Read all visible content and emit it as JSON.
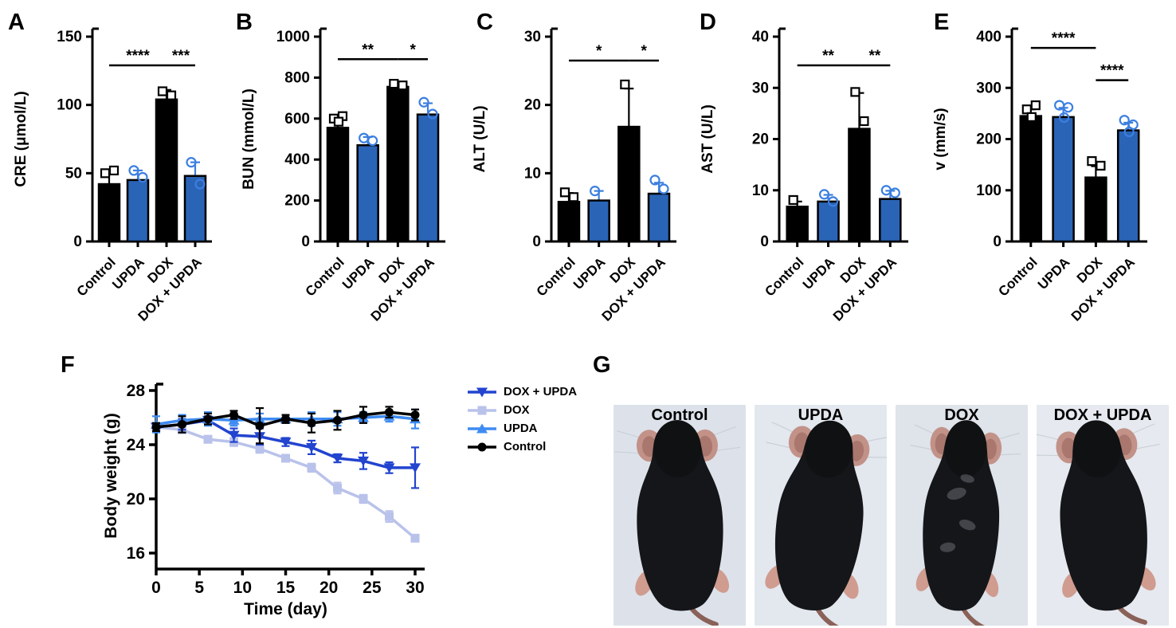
{
  "figure": {
    "panel_letters": [
      "A",
      "B",
      "C",
      "D",
      "E",
      "F",
      "G"
    ]
  },
  "colors": {
    "black": "#000000",
    "bar_blue": "#2a64b6",
    "point_blue": "#3c7fe0",
    "line_dox_upda": "#2244cf",
    "line_dox": "#b9c2ea",
    "line_upda": "#3e8bf2",
    "photo_bg": "#e0e5ec"
  },
  "chart_data": [
    {
      "panel": "A",
      "type": "bar",
      "ylabel": "CRE (μmol/L)",
      "ylim": [
        0,
        150
      ],
      "yticks": [
        0,
        50,
        100,
        150
      ],
      "categories": [
        "Control",
        "UPDA",
        "DOX",
        "DOX + UPDA"
      ],
      "values": [
        42,
        45,
        104,
        48
      ],
      "errors": [
        9,
        7,
        7,
        10
      ],
      "bar_colors": [
        "black",
        "blue",
        "black",
        "blue"
      ],
      "points": [
        [
          50,
          52
        ],
        [
          52,
          47
        ],
        [
          110,
          107
        ],
        [
          58,
          42
        ]
      ],
      "significance": [
        {
          "from": 0,
          "to": 2,
          "label": "****",
          "line_y": 129
        },
        {
          "from": 2,
          "to": 3,
          "label": "***",
          "line_y": 129
        }
      ]
    },
    {
      "panel": "B",
      "type": "bar",
      "ylabel": "BUN (mmol/L)",
      "ylim": [
        0,
        1000
      ],
      "yticks": [
        0,
        200,
        400,
        600,
        800,
        1000
      ],
      "categories": [
        "Control",
        "UPDA",
        "DOX",
        "DOX + UPDA"
      ],
      "values": [
        555,
        470,
        755,
        620
      ],
      "errors": [
        60,
        40,
        18,
        55
      ],
      "bar_colors": [
        "black",
        "blue",
        "black",
        "blue"
      ],
      "points": [
        [
          600,
          612,
          585
        ],
        [
          505,
          492
        ],
        [
          770,
          762
        ],
        [
          680,
          622
        ]
      ],
      "significance": [
        {
          "from": 0,
          "to": 2,
          "label": "**",
          "line_y": 890
        },
        {
          "from": 2,
          "to": 3,
          "label": "*",
          "line_y": 890
        }
      ]
    },
    {
      "panel": "C",
      "type": "bar",
      "ylabel": "ALT (U/L)",
      "ylim": [
        0,
        30
      ],
      "yticks": [
        0,
        10,
        20,
        30
      ],
      "categories": [
        "Control",
        "UPDA",
        "DOX",
        "DOX + UPDA"
      ],
      "values": [
        5.8,
        6,
        16.8,
        7
      ],
      "errors": [
        1.3,
        1.4,
        5.6,
        1.6
      ],
      "bar_colors": [
        "black",
        "blue",
        "black",
        "blue"
      ],
      "points": [
        [
          7.2,
          6.5
        ],
        [
          7.4
        ],
        [
          23
        ],
        [
          9,
          7.7
        ]
      ],
      "significance": [
        {
          "from": 0,
          "to": 2,
          "label": "*",
          "line_y": 26.5
        },
        {
          "from": 2,
          "to": 3,
          "label": "*",
          "line_y": 26.5
        }
      ]
    },
    {
      "panel": "D",
      "type": "bar",
      "ylabel": "AST (U/L)",
      "ylim": [
        0,
        40
      ],
      "yticks": [
        0,
        10,
        20,
        30,
        40
      ],
      "categories": [
        "Control",
        "UPDA",
        "DOX",
        "DOX + UPDA"
      ],
      "values": [
        6.8,
        7.8,
        22,
        8.3
      ],
      "errors": [
        1,
        1.3,
        7,
        1.6
      ],
      "bar_colors": [
        "black",
        "blue",
        "black",
        "blue"
      ],
      "points": [
        [
          8.1
        ],
        [
          9.2,
          7.8
        ],
        [
          29.2,
          23.5
        ],
        [
          10,
          9.5
        ]
      ],
      "significance": [
        {
          "from": 0,
          "to": 2,
          "label": "**",
          "line_y": 34.4
        },
        {
          "from": 2,
          "to": 3,
          "label": "**",
          "line_y": 34.4
        }
      ]
    },
    {
      "panel": "E",
      "type": "bar",
      "ylabel": "v (mm/s)",
      "ylim": [
        0,
        400
      ],
      "yticks": [
        0,
        100,
        200,
        300,
        400
      ],
      "categories": [
        "Control",
        "UPDA",
        "DOX",
        "DOX + UPDA"
      ],
      "values": [
        245,
        243,
        125,
        217
      ],
      "errors": [
        13,
        18,
        22,
        15
      ],
      "bar_colors": [
        "black",
        "blue",
        "black",
        "blue"
      ],
      "points": [
        [
          258,
          266,
          243
        ],
        [
          266,
          262,
          242
        ],
        [
          157,
          148
        ],
        [
          237,
          228,
          214
        ]
      ],
      "significance": [
        {
          "from": 0,
          "to": 2,
          "label": "****",
          "line_y": 378
        },
        {
          "from": 2,
          "to": 3,
          "label": "****",
          "line_y": 315
        }
      ]
    },
    {
      "panel": "F",
      "type": "line",
      "xlabel": "Time (day)",
      "ylabel": "Body weight (g)",
      "xlim": [
        0,
        30
      ],
      "xticks": [
        0,
        5,
        10,
        15,
        20,
        25,
        30
      ],
      "ylim": [
        16,
        28
      ],
      "yticks": [
        16,
        20,
        24,
        28
      ],
      "x": [
        0,
        3,
        6,
        9,
        12,
        15,
        18,
        21,
        24,
        27,
        30
      ],
      "series": [
        {
          "name": "DOX + UPDA",
          "marker": "triangle-down",
          "color": "line_dox_upda",
          "z": 1,
          "values": [
            25.3,
            25.5,
            25.8,
            24.7,
            24.6,
            24.2,
            23.8,
            23.0,
            22.8,
            22.3,
            22.3
          ],
          "errors": [
            0.3,
            0.4,
            0.3,
            0.5,
            0.6,
            0.3,
            0.5,
            0.3,
            0.6,
            0.4,
            1.5
          ]
        },
        {
          "name": "DOX",
          "marker": "square",
          "color": "line_dox",
          "z": 0,
          "values": [
            25.3,
            25.1,
            24.4,
            24.2,
            23.7,
            23.0,
            22.3,
            20.8,
            20.0,
            18.7,
            17.1
          ],
          "errors": [
            0.2,
            0.2,
            0.25,
            0.3,
            0.3,
            0.25,
            0.3,
            0.4,
            0.3,
            0.4,
            0.2
          ]
        },
        {
          "name": "UPDA",
          "marker": "triangle-up",
          "color": "line_upda",
          "z": 2,
          "values": [
            25.5,
            25.8,
            25.9,
            25.8,
            25.9,
            25.9,
            25.9,
            25.9,
            26.0,
            26.1,
            25.9
          ],
          "errors": [
            0.6,
            0.4,
            0.5,
            0.4,
            0.4,
            0.3,
            0.5,
            0.5,
            0.4,
            0.4,
            0.7
          ]
        },
        {
          "name": "Control",
          "marker": "circle",
          "color": "black",
          "z": 3,
          "values": [
            25.3,
            25.5,
            25.9,
            26.2,
            25.4,
            25.9,
            25.6,
            25.8,
            26.2,
            26.4,
            26.2
          ],
          "errors": [
            0.3,
            0.6,
            0.4,
            0.3,
            1.3,
            0.3,
            0.7,
            0.7,
            0.6,
            0.4,
            0.4
          ]
        }
      ],
      "legend_order": [
        "DOX + UPDA",
        "DOX",
        "UPDA",
        "Control"
      ]
    }
  ],
  "photos": {
    "labels": [
      "Control",
      "UPDA",
      "DOX",
      "DOX + UPDA"
    ]
  }
}
